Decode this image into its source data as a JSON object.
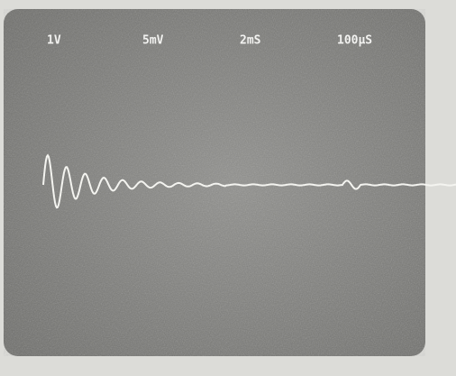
{
  "screen": {
    "labels": [
      "1V",
      "5mV",
      "2mS",
      "100μS"
    ]
  }
}
